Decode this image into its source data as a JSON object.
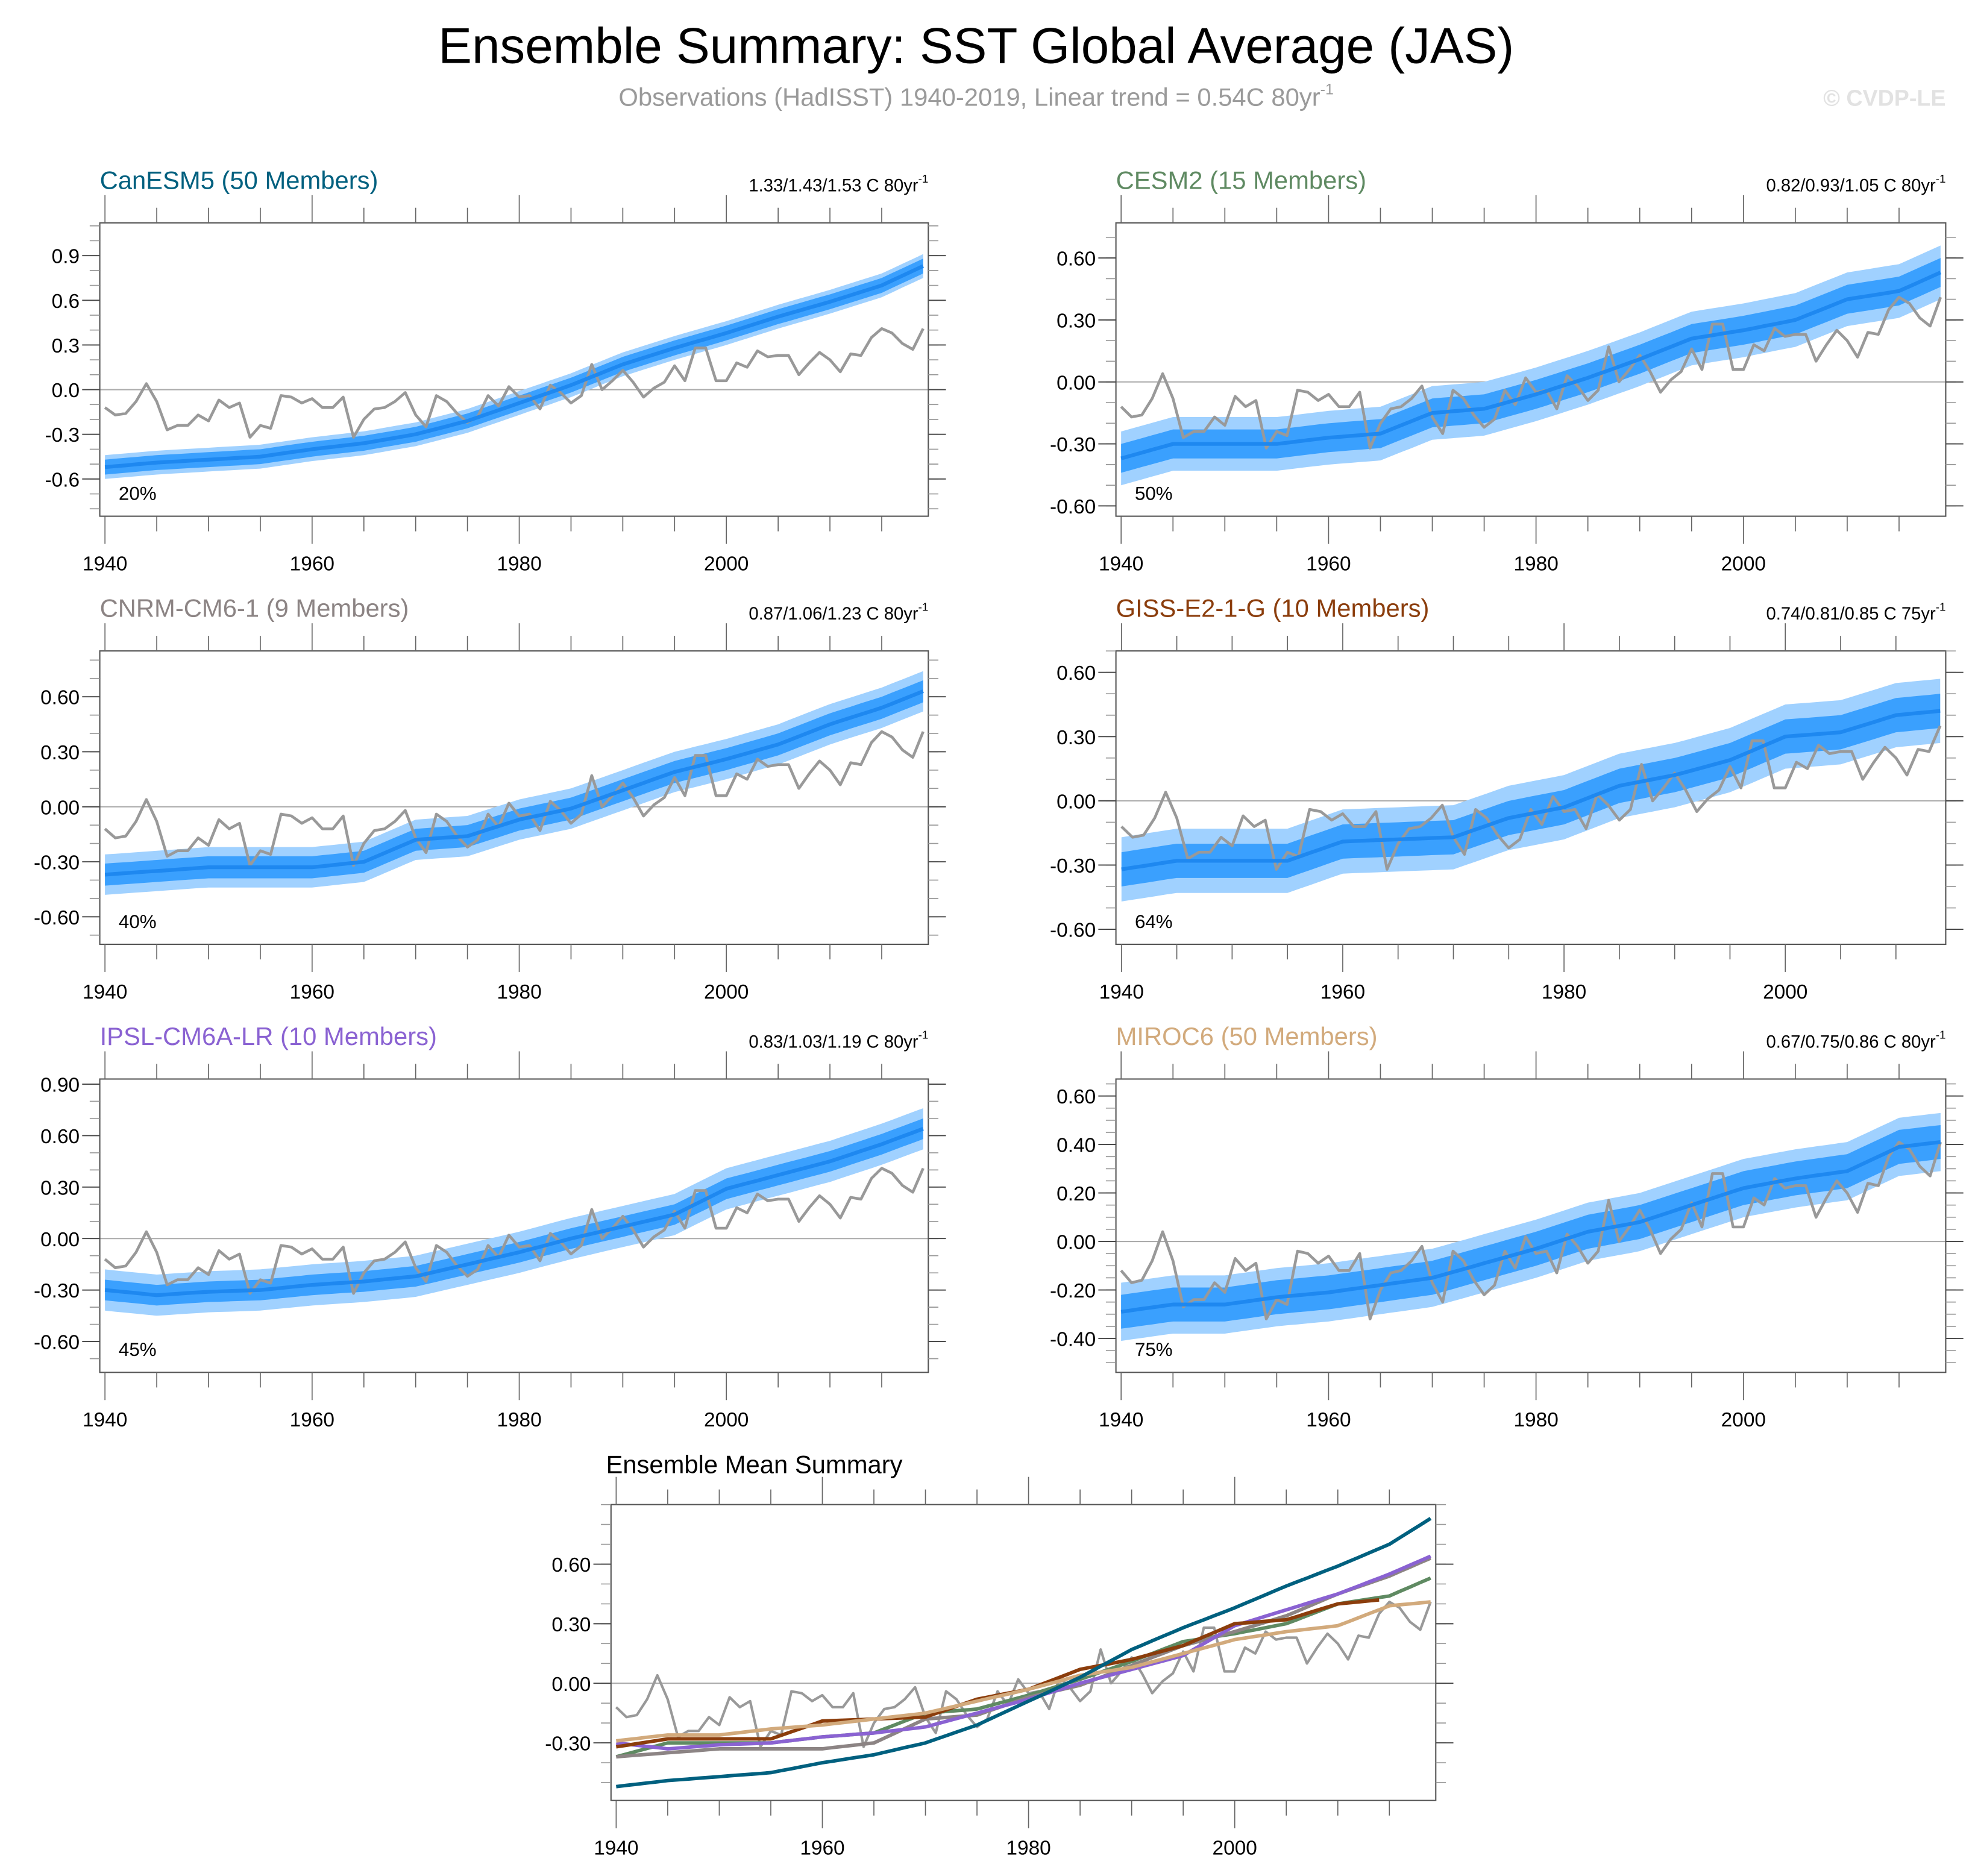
{
  "title": "Ensemble Summary: SST Global Average (JAS)",
  "subtitle": "Observations (HadISST) 1940-2019, Linear trend = 0.54C 80yr",
  "subtitle_exp": "-1",
  "watermark": "© CVDP-LE",
  "colors": {
    "obs": "#999999",
    "band_outer": "#a0d1ff",
    "band_inner": "#3aa0fe",
    "ens_mean": "#1e88f0",
    "zero_line": "#aaaaaa"
  },
  "chart_data": [
    {
      "type": "area",
      "title": "CanESM5 (50 Members)",
      "title_color": "#00607f",
      "trend": "1.33/1.43/1.53 C 80yr",
      "trend_exp": "-1",
      "percent_label": "20%",
      "xlim": [
        1939.5,
        2019.5
      ],
      "ylim": [
        -0.85,
        1.12
      ],
      "yticks": [
        -0.6,
        -0.3,
        0.0,
        0.3,
        0.6,
        0.9
      ],
      "ytick_labels": [
        "-0.6",
        "-0.3",
        "0.0",
        "0.3",
        "0.6",
        "0.9"
      ],
      "yminor": 0.1,
      "xticks": [
        1940,
        1960,
        1980,
        2000
      ],
      "ens_mean_years": [
        1940,
        1945,
        1950,
        1955,
        1960,
        1965,
        1970,
        1975,
        1980,
        1985,
        1990,
        1995,
        2000,
        2005,
        2010,
        2015,
        2019
      ],
      "ens_mean": [
        -0.52,
        -0.49,
        -0.47,
        -0.45,
        -0.4,
        -0.36,
        -0.3,
        -0.21,
        -0.09,
        0.03,
        0.17,
        0.28,
        0.38,
        0.49,
        0.59,
        0.7,
        0.83
      ],
      "inner_band_halfwidth": 0.05,
      "outer_band_halfwidth": 0.08
    },
    {
      "type": "area",
      "title": "CESM2 (15 Members)",
      "title_color": "#5f8a62",
      "trend": "0.82/0.93/1.05 C 80yr",
      "trend_exp": "-1",
      "percent_label": "50%",
      "xlim": [
        1939.5,
        2019.5
      ],
      "ylim": [
        -0.65,
        0.77
      ],
      "yticks": [
        -0.6,
        -0.3,
        0.0,
        0.3,
        0.6
      ],
      "ytick_labels": [
        "-0.60",
        "-0.30",
        "0.00",
        "0.30",
        "0.60"
      ],
      "yminor": 0.1,
      "xticks": [
        1940,
        1960,
        1980,
        2000
      ],
      "ens_mean_years": [
        1940,
        1945,
        1950,
        1955,
        1960,
        1965,
        1970,
        1975,
        1980,
        1985,
        1990,
        1995,
        2000,
        2005,
        2010,
        2015,
        2019
      ],
      "ens_mean": [
        -0.37,
        -0.3,
        -0.3,
        -0.3,
        -0.27,
        -0.25,
        -0.15,
        -0.13,
        -0.06,
        0.02,
        0.11,
        0.21,
        0.25,
        0.3,
        0.4,
        0.44,
        0.53
      ],
      "inner_band_halfwidth": 0.07,
      "outer_band_halfwidth": 0.13
    },
    {
      "type": "area",
      "title": "CNRM-CM6-1 (9 Members)",
      "title_color": "#8c8484",
      "trend": "0.87/1.06/1.23 C 80yr",
      "trend_exp": "-1",
      "percent_label": "40%",
      "xlim": [
        1939.5,
        2019.5
      ],
      "ylim": [
        -0.75,
        0.85
      ],
      "yticks": [
        -0.6,
        -0.3,
        0.0,
        0.3,
        0.6
      ],
      "ytick_labels": [
        "-0.60",
        "-0.30",
        "0.00",
        "0.30",
        "0.60"
      ],
      "yminor": 0.1,
      "xticks": [
        1940,
        1960,
        1980,
        2000
      ],
      "ens_mean_years": [
        1940,
        1945,
        1950,
        1955,
        1960,
        1965,
        1970,
        1975,
        1980,
        1985,
        1990,
        1995,
        2000,
        2005,
        2010,
        2015,
        2019
      ],
      "ens_mean": [
        -0.37,
        -0.35,
        -0.33,
        -0.33,
        -0.33,
        -0.3,
        -0.18,
        -0.16,
        -0.07,
        -0.01,
        0.09,
        0.19,
        0.26,
        0.34,
        0.45,
        0.54,
        0.63
      ],
      "inner_band_halfwidth": 0.06,
      "outer_band_halfwidth": 0.11
    },
    {
      "type": "area",
      "title": "GISS-E2-1-G (10 Members)",
      "title_color": "#8b3d0c",
      "trend": "0.74/0.81/0.85 C 75yr",
      "trend_exp": "-1",
      "percent_label": "64%",
      "xlim": [
        1939.5,
        2014.5
      ],
      "ylim": [
        -0.67,
        0.7
      ],
      "yticks": [
        -0.6,
        -0.3,
        0.0,
        0.3,
        0.6
      ],
      "ytick_labels": [
        "-0.60",
        "-0.30",
        "0.00",
        "0.30",
        "0.60"
      ],
      "yminor": 0.1,
      "xticks": [
        1940,
        1960,
        1980,
        2000
      ],
      "ens_mean_years": [
        1940,
        1945,
        1950,
        1955,
        1960,
        1965,
        1970,
        1975,
        1980,
        1985,
        1990,
        1995,
        2000,
        2005,
        2010,
        2014
      ],
      "ens_mean": [
        -0.32,
        -0.28,
        -0.28,
        -0.28,
        -0.19,
        -0.18,
        -0.17,
        -0.08,
        -0.03,
        0.07,
        0.12,
        0.19,
        0.3,
        0.32,
        0.4,
        0.42
      ],
      "inner_band_halfwidth": 0.08,
      "outer_band_halfwidth": 0.15
    },
    {
      "type": "area",
      "title": "IPSL-CM6A-LR (10 Members)",
      "title_color": "#8a62d2",
      "trend": "0.83/1.03/1.19 C 80yr",
      "trend_exp": "-1",
      "percent_label": "45%",
      "xlim": [
        1939.5,
        2019.5
      ],
      "ylim": [
        -0.78,
        0.93
      ],
      "yticks": [
        -0.6,
        -0.3,
        0.0,
        0.3,
        0.6,
        0.9
      ],
      "ytick_labels": [
        "-0.60",
        "-0.30",
        "0.00",
        "0.30",
        "0.60",
        "0.90"
      ],
      "yminor": 0.1,
      "xticks": [
        1940,
        1960,
        1980,
        2000
      ],
      "ens_mean_years": [
        1940,
        1945,
        1950,
        1955,
        1960,
        1965,
        1970,
        1975,
        1980,
        1985,
        1990,
        1995,
        2000,
        2005,
        2010,
        2015,
        2019
      ],
      "ens_mean": [
        -0.3,
        -0.33,
        -0.31,
        -0.3,
        -0.27,
        -0.25,
        -0.22,
        -0.15,
        -0.08,
        0.0,
        0.07,
        0.14,
        0.29,
        0.37,
        0.45,
        0.55,
        0.64
      ],
      "inner_band_halfwidth": 0.06,
      "outer_band_halfwidth": 0.12
    },
    {
      "type": "area",
      "title": "MIROC6 (50 Members)",
      "title_color": "#d2aa7c",
      "trend": "0.67/0.75/0.86 C 80yr",
      "trend_exp": "-1",
      "percent_label": "75%",
      "xlim": [
        1939.5,
        2019.5
      ],
      "ylim": [
        -0.54,
        0.67
      ],
      "yticks": [
        -0.4,
        -0.2,
        0.0,
        0.2,
        0.4,
        0.6
      ],
      "ytick_labels": [
        "-0.40",
        "-0.20",
        "0.00",
        "0.20",
        "0.40",
        "0.60"
      ],
      "yminor": 0.05,
      "xticks": [
        1940,
        1960,
        1980,
        2000
      ],
      "ens_mean_years": [
        1940,
        1945,
        1950,
        1955,
        1960,
        1965,
        1970,
        1975,
        1980,
        1985,
        1990,
        1995,
        2000,
        2005,
        2010,
        2015,
        2019
      ],
      "ens_mean": [
        -0.29,
        -0.26,
        -0.26,
        -0.23,
        -0.21,
        -0.18,
        -0.15,
        -0.09,
        -0.03,
        0.04,
        0.08,
        0.15,
        0.22,
        0.26,
        0.29,
        0.39,
        0.41
      ],
      "inner_band_halfwidth": 0.07,
      "outer_band_halfwidth": 0.12
    },
    {
      "type": "line",
      "title": "Ensemble Mean Summary",
      "xlim": [
        1939.5,
        2019.5
      ],
      "ylim": [
        -0.59,
        0.9
      ],
      "yticks": [
        -0.3,
        0.0,
        0.3,
        0.6
      ],
      "ytick_labels": [
        "-0.30",
        "0.00",
        "0.30",
        "0.60"
      ],
      "yminor": 0.1,
      "xticks": [
        1940,
        1960,
        1980,
        2000
      ],
      "series_from_panels": [
        "CanESM5",
        "CESM2",
        "CNRM-CM6-1",
        "GISS-E2-1-G",
        "IPSL-CM6A-LR",
        "MIROC6"
      ]
    }
  ],
  "observations": {
    "years_start": 1940,
    "values": [
      -0.12,
      -0.17,
      -0.16,
      -0.08,
      0.04,
      -0.08,
      -0.27,
      -0.24,
      -0.24,
      -0.17,
      -0.21,
      -0.07,
      -0.12,
      -0.09,
      -0.32,
      -0.24,
      -0.26,
      -0.04,
      -0.05,
      -0.09,
      -0.06,
      -0.12,
      -0.12,
      -0.05,
      -0.32,
      -0.2,
      -0.13,
      -0.12,
      -0.08,
      -0.02,
      -0.17,
      -0.25,
      -0.04,
      -0.08,
      -0.16,
      -0.22,
      -0.18,
      -0.04,
      -0.11,
      0.02,
      -0.05,
      -0.04,
      -0.13,
      0.03,
      -0.02,
      -0.09,
      -0.04,
      0.17,
      0.0,
      0.06,
      0.13,
      0.05,
      -0.05,
      0.01,
      0.05,
      0.16,
      0.06,
      0.28,
      0.28,
      0.06,
      0.06,
      0.18,
      0.15,
      0.26,
      0.22,
      0.23,
      0.23,
      0.1,
      0.18,
      0.25,
      0.2,
      0.12,
      0.24,
      0.23,
      0.35,
      0.41,
      0.38,
      0.31,
      0.27,
      0.41
    ]
  }
}
